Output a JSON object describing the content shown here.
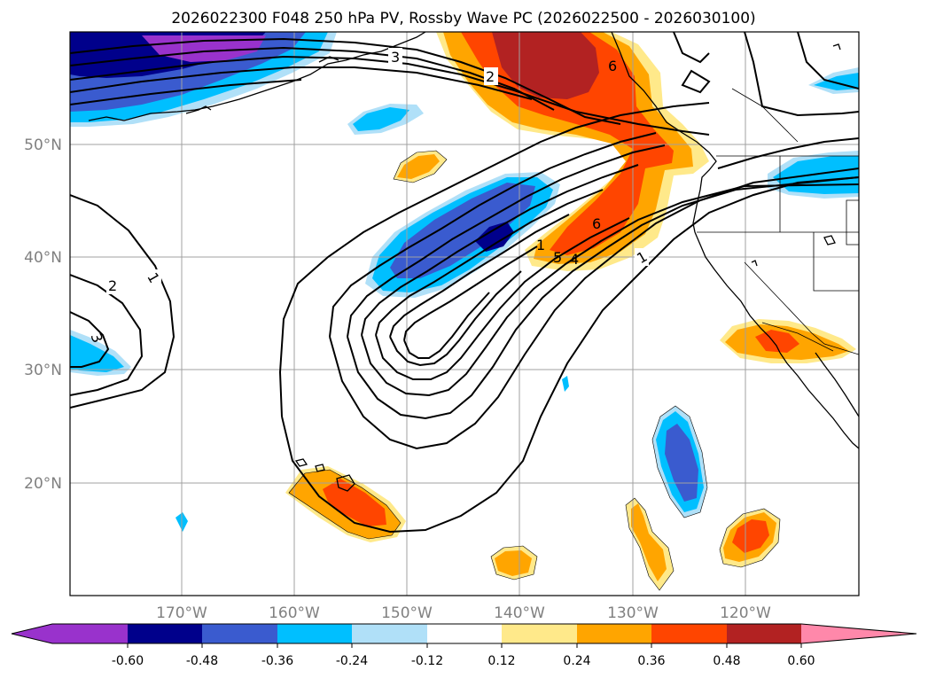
{
  "title": "2026022300 F048 250 hPa PV, Rossby Wave PC (2026022500 - 2026030100)",
  "map": {
    "lat_labels": [
      "50°N",
      "40°N",
      "30°N",
      "20°N"
    ],
    "lon_labels": [
      "170°W",
      "160°W",
      "150°W",
      "140°W",
      "130°W",
      "120°W"
    ],
    "contour_labels": [
      "3",
      "2",
      "6",
      "1",
      "6",
      "5",
      "4",
      "1",
      "2",
      "1",
      "3"
    ]
  },
  "colorbar": {
    "ticks": [
      "-0.60",
      "-0.48",
      "-0.36",
      "-0.24",
      "-0.12",
      "0.12",
      "0.24",
      "0.36",
      "0.48",
      "0.60"
    ],
    "colors": [
      "#9932cc",
      "#00008b",
      "#3a5bcf",
      "#00bfff",
      "#b0e0f8",
      "#ffffff",
      "#ffe98a",
      "#ffa500",
      "#ff4500",
      "#b22222",
      "#ff88aa"
    ]
  },
  "colors": {
    "grid": "#a0a0a0",
    "contour": "#000000",
    "axis_label": "#808080"
  }
}
